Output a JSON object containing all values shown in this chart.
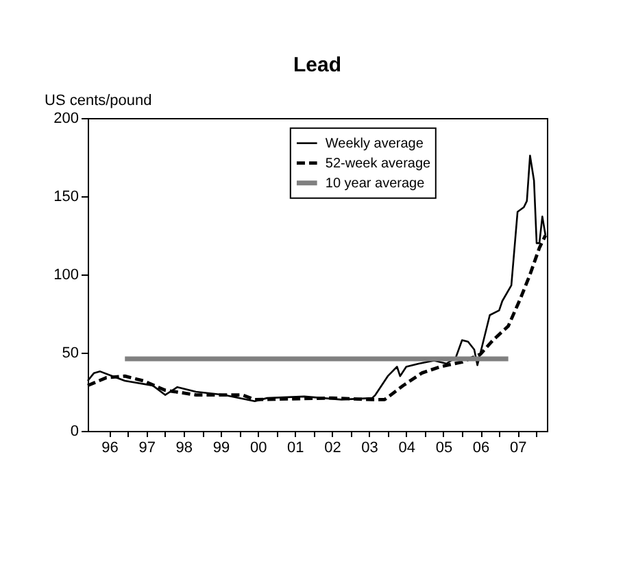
{
  "chart_data": {
    "type": "line",
    "title": "Lead",
    "ylabel": "US cents/pound",
    "xlim": [
      "1995-12",
      "2008-04-15"
    ],
    "xticks": [
      {
        "value": "1996-07",
        "label": "96"
      },
      {
        "value": "1997-07",
        "label": "97"
      },
      {
        "value": "1998-07",
        "label": "98"
      },
      {
        "value": "1999-07",
        "label": "99"
      },
      {
        "value": "2000-07",
        "label": "00"
      },
      {
        "value": "2001-07",
        "label": "01"
      },
      {
        "value": "2002-07",
        "label": "02"
      },
      {
        "value": "2003-07",
        "label": "03"
      },
      {
        "value": "2004-07",
        "label": "04"
      },
      {
        "value": "2005-07",
        "label": "05"
      },
      {
        "value": "2006-07",
        "label": "06"
      },
      {
        "value": "2007-07",
        "label": "07"
      },
      {
        "value": "1997",
        "label": null
      },
      {
        "value": "1998",
        "label": null
      },
      {
        "value": "1999",
        "label": null
      },
      {
        "value": "2000",
        "label": null
      },
      {
        "value": "2001",
        "label": null
      },
      {
        "value": "2002",
        "label": null
      },
      {
        "value": "2003",
        "label": null
      },
      {
        "value": "2004",
        "label": null
      },
      {
        "value": "2005",
        "label": null
      },
      {
        "value": "2006",
        "label": null
      },
      {
        "value": "2007",
        "label": null
      },
      {
        "value": "2008",
        "label": null
      }
    ],
    "ylim": [
      0,
      200
    ],
    "yticks": [
      0,
      50,
      100,
      150,
      200
    ],
    "grid": false,
    "legend": "top right",
    "series": [
      {
        "name": "Weekly average",
        "color": "#000000",
        "line_style": "solid",
        "x": [
          "1995-12",
          "1996-02",
          "1996-04",
          "1996-08",
          "1996-12",
          "1997-09",
          "1998-01",
          "1998-05",
          "1998-11",
          "1999-08",
          "2000-06",
          "2000-10",
          "2001-10",
          "2002-10",
          "2003-08",
          "2003-09",
          "2004-01",
          "2004-04",
          "2004-05",
          "2004-07",
          "2004-11",
          "2005-04",
          "2005-08",
          "2005-11",
          "2006-01",
          "2006-03",
          "2006-05",
          "2006-06",
          "2006-08",
          "2006-10",
          "2007-01",
          "2007-02",
          "2007-05",
          "2007-07",
          "2007-09",
          "2007-10",
          "2007-11",
          "2007-12-10",
          "2008-01-05",
          "2008-02",
          "2008-03",
          "2008-04"
        ],
        "values": [
          32,
          37,
          38,
          35,
          32,
          29,
          23,
          28,
          25,
          23,
          19,
          21,
          22,
          20,
          21,
          23,
          35,
          41,
          35,
          41,
          43,
          45,
          43,
          47,
          58,
          57,
          52,
          42,
          58,
          74,
          77,
          83,
          93,
          140,
          143,
          147,
          176,
          160,
          120,
          120,
          137,
          125
        ]
      },
      {
        "name": "52-week average",
        "color": "#000000",
        "line_style": "dashed",
        "x": [
          "1995-12",
          "1996-06",
          "1996-12",
          "1997-06",
          "1998-01",
          "1998-11",
          "2000-02",
          "2000-06",
          "2002-07",
          "2003-08",
          "2003-12",
          "2004-06",
          "2004-12",
          "2005-06",
          "2006-01",
          "2006-07",
          "2006-11",
          "2007-04",
          "2007-08",
          "2007-11",
          "2008-02",
          "2008-04"
        ],
        "values": [
          29,
          34,
          35,
          32,
          26,
          23,
          23,
          20,
          21,
          20,
          20,
          29,
          37,
          41,
          44,
          49,
          58,
          67,
          85,
          100,
          117,
          125
        ]
      },
      {
        "name": "10 year average",
        "color": "#808080",
        "line_style": "solid",
        "x": [
          "1996-12",
          "2007-04"
        ],
        "values": [
          46,
          46
        ]
      }
    ]
  }
}
